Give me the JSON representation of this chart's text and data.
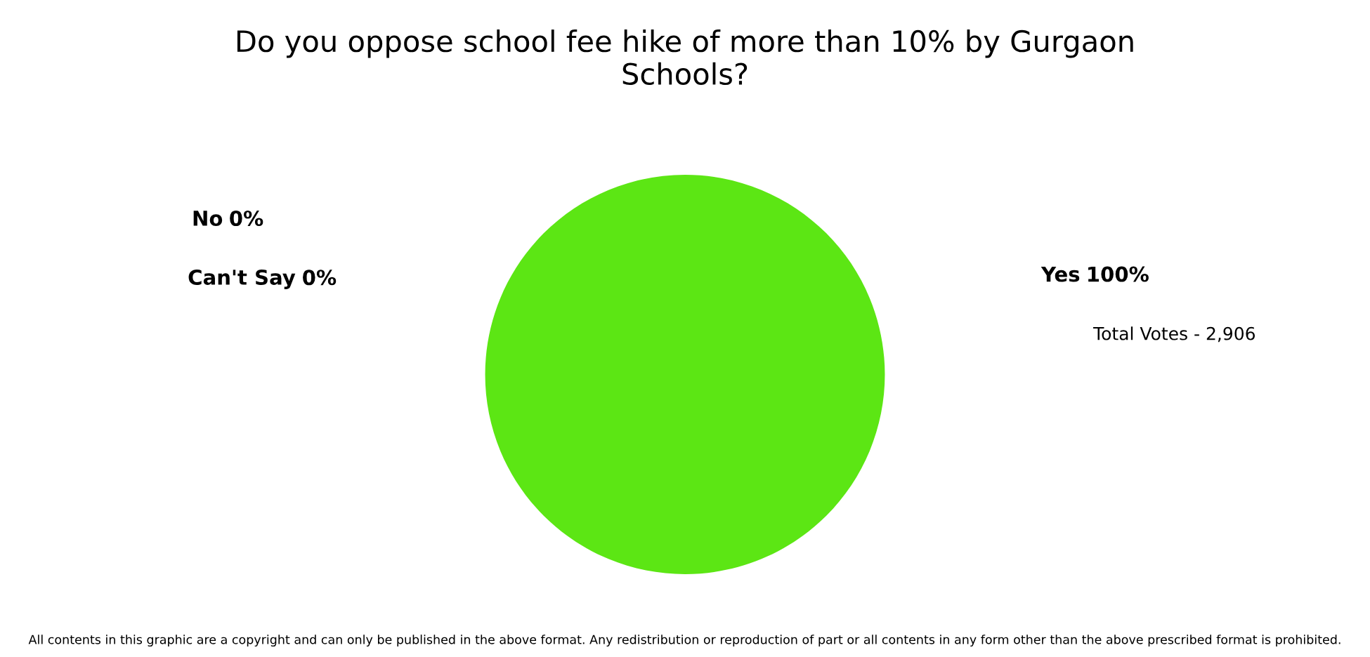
{
  "chart_data": {
    "type": "pie",
    "title": "Do you oppose school fee hike of more than 10% by Gurgaon\nSchools?",
    "categories": [
      "Yes",
      "No",
      "Can't Say"
    ],
    "values": [
      100,
      0,
      0
    ],
    "colors": [
      "#5ce614",
      "#4f81bd",
      "#c0504d"
    ],
    "value_labels": [
      "100%",
      "0%",
      "0%"
    ],
    "annotations": [
      "Total Votes - 2,906",
      "All contents in this graphic are a copyright and can only be published in the above format. Any redistribution or reproduction of part or all contents in any form other than the above prescribed format is prohibited."
    ],
    "legend": false
  }
}
